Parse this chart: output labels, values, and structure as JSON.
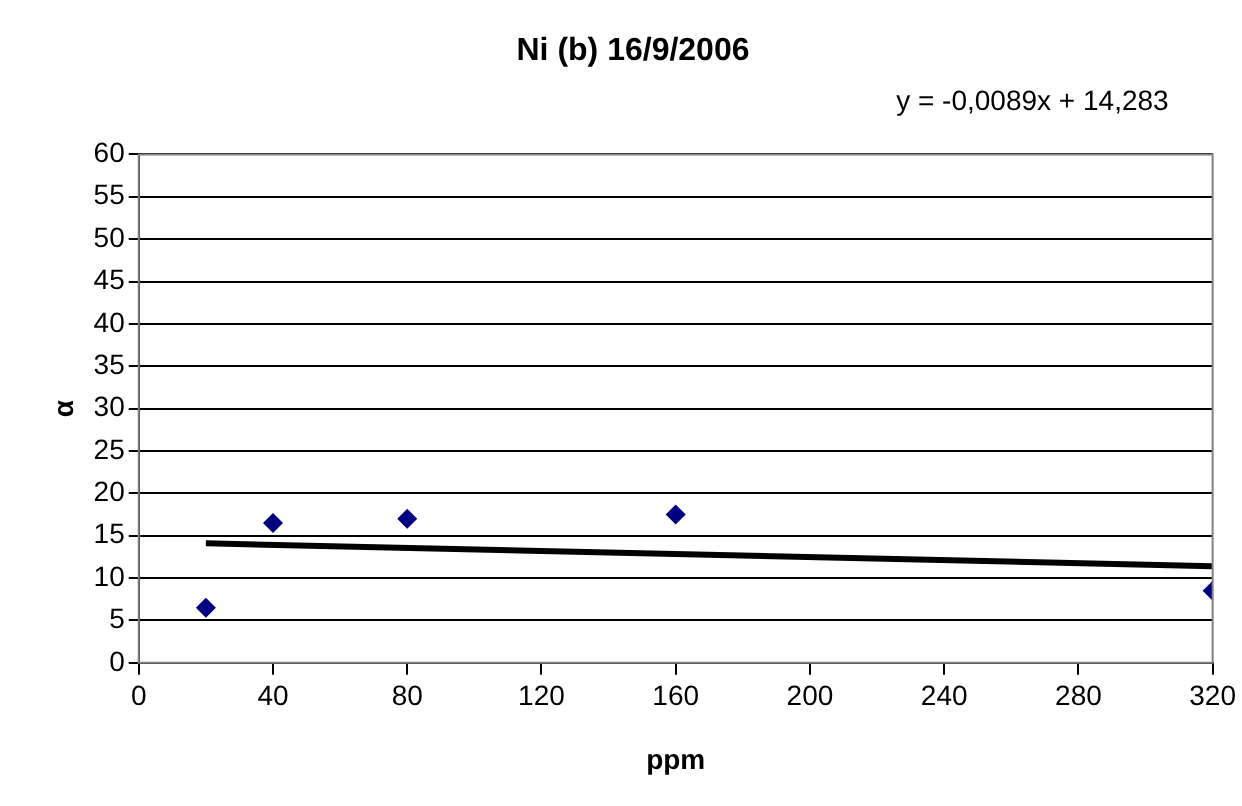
{
  "chart_data": {
    "type": "scatter",
    "title": "Ni (b) 16/9/2006",
    "xlabel": "ppm",
    "ylabel": "α",
    "xlim": [
      0,
      320
    ],
    "xticks": [
      0,
      40,
      80,
      120,
      160,
      200,
      240,
      280,
      320
    ],
    "ylim": [
      0,
      60
    ],
    "yticks": [
      0,
      5,
      10,
      15,
      20,
      25,
      30,
      35,
      40,
      45,
      50,
      55,
      60
    ],
    "grid": "y",
    "legend": false,
    "marker": "diamond",
    "annotations": [
      "y = -0,0089x + 14,283"
    ],
    "series": [
      {
        "color": "#000080",
        "x": [
          20,
          40,
          80,
          160,
          320
        ],
        "values": [
          6.5,
          16.5,
          17,
          17.5,
          8.5
        ]
      },
      {
        "type": "line",
        "marker": "none",
        "line_style": "solid",
        "color": "#000000",
        "x": [
          20,
          320
        ],
        "values": [
          14.1,
          11.4
        ]
      }
    ]
  }
}
